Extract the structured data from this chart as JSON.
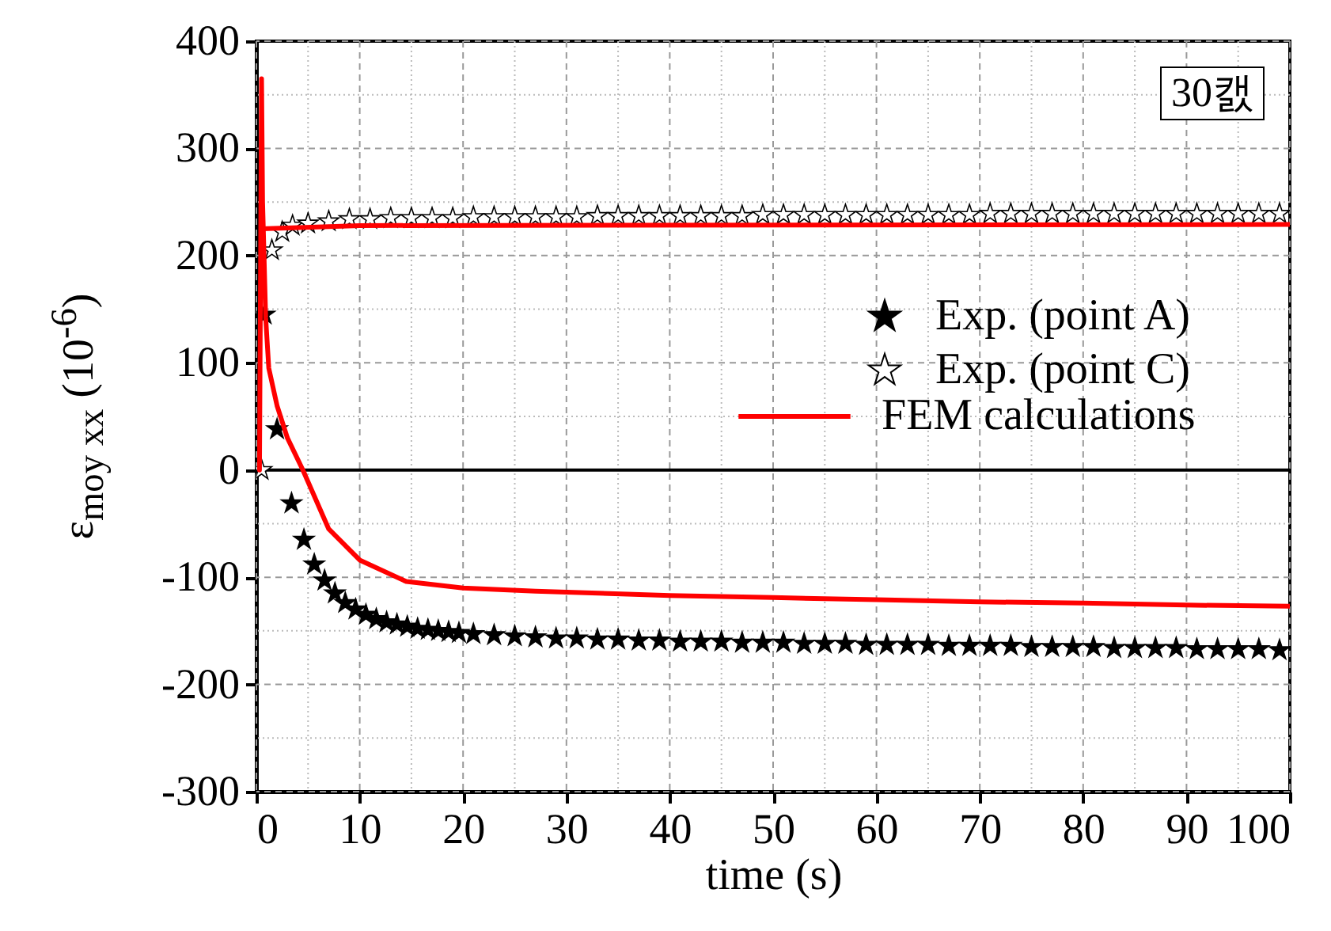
{
  "chart_data": {
    "type": "scatter",
    "xlabel": "time (s)",
    "ylabel": "ε$_{moy xx}$ (10$^{-6}$)",
    "annotations": [
      "30캜"
    ],
    "xlim": [
      0,
      100
    ],
    "ylim": [
      -300,
      400
    ],
    "xticks": [
      0,
      {
        "value": 5,
        "label": null
      },
      10,
      {
        "value": 15,
        "label": null
      },
      20,
      {
        "value": 25,
        "label": null
      },
      30,
      {
        "value": 35,
        "label": null
      },
      40,
      {
        "value": 45,
        "label": null
      },
      50,
      {
        "value": 55,
        "label": null
      },
      60,
      {
        "value": 65,
        "label": null
      },
      70,
      {
        "value": 75,
        "label": null
      },
      80,
      {
        "value": 85,
        "label": null
      },
      90,
      {
        "value": 95,
        "label": null
      },
      100
    ],
    "yticks": [
      -300,
      {
        "value": -250,
        "label": null
      },
      -200,
      {
        "value": -150,
        "label": null
      },
      -100,
      {
        "value": -50,
        "label": null
      },
      0,
      {
        "value": 50,
        "label": null
      },
      100,
      {
        "value": 150,
        "label": null
      },
      200,
      {
        "value": 250,
        "label": null
      },
      300,
      {
        "value": 350,
        "label": null
      },
      400
    ],
    "grid": true,
    "legend": "right",
    "ref_lines": [
      {
        "axis": "y",
        "value": 0,
        "color": "#000000"
      }
    ],
    "series": [
      {
        "name": "Exp. (point A)",
        "marker": "star",
        "color": "#000000",
        "x": [
          0.8,
          2,
          3.4,
          4.6,
          5.6,
          6.6,
          7.6,
          8.6,
          9.6,
          10.6,
          11.6,
          12.6,
          13.6,
          14.6,
          15.6,
          16.6,
          17.6,
          18.6,
          19.6,
          21,
          23,
          25,
          27,
          29,
          31,
          33,
          35,
          37,
          39,
          41,
          43,
          45,
          47,
          49,
          51,
          53,
          55,
          57,
          59,
          61,
          63,
          65,
          67,
          69,
          71,
          73,
          75,
          77,
          79,
          81,
          83,
          85,
          87,
          89,
          91,
          93,
          95,
          97,
          99
        ],
        "values": [
          145,
          38,
          -31,
          -65,
          -88,
          -103,
          -115,
          -124,
          -130,
          -135,
          -139,
          -142,
          -144,
          -146,
          -148,
          -149,
          -150,
          -151,
          -152,
          -153,
          -154,
          -155,
          -156,
          -157,
          -157,
          -158,
          -158,
          -159,
          -159,
          -160,
          -160,
          -160,
          -161,
          -161,
          -161,
          -162,
          -162,
          -162,
          -163,
          -163,
          -163,
          -163,
          -164,
          -164,
          -164,
          -164,
          -165,
          -165,
          -165,
          -165,
          -166,
          -166,
          -166,
          -166,
          -167,
          -167,
          -167,
          -167,
          -168
        ]
      },
      {
        "name": "Exp. (point C)",
        "marker": "star",
        "color": "#ffffff",
        "x": [
          0.5,
          1.5,
          2.5,
          3.5,
          5,
          7,
          9,
          11,
          13,
          15,
          17,
          19,
          21,
          23,
          25,
          27,
          29,
          31,
          33,
          35,
          37,
          39,
          41,
          43,
          45,
          47,
          49,
          51,
          53,
          55,
          57,
          59,
          61,
          63,
          65,
          67,
          69,
          71,
          73,
          75,
          77,
          79,
          81,
          83,
          85,
          87,
          89,
          91,
          93,
          95,
          97,
          99
        ],
        "values": [
          0,
          205,
          222,
          228,
          230,
          232,
          234,
          234,
          235,
          235,
          235,
          235,
          236,
          236,
          236,
          236,
          236,
          236,
          237,
          237,
          237,
          237,
          237,
          237,
          237,
          237,
          238,
          238,
          238,
          238,
          238,
          238,
          238,
          238,
          238,
          238,
          238,
          239,
          239,
          239,
          239,
          239,
          239,
          239,
          239,
          239,
          239,
          239,
          239,
          239,
          239,
          239
        ]
      },
      {
        "name": "FEM calculations",
        "type": "line",
        "color": "#ff0000",
        "x": [
          0.3,
          0.5,
          0.6,
          0.9,
          1.2,
          2,
          3,
          4.5,
          7,
          10,
          14.5,
          20,
          27,
          40,
          50,
          60,
          70,
          80,
          90,
          100
        ],
        "values": [
          0,
          365,
          250,
          142,
          95,
          60,
          30,
          0,
          -55,
          -84,
          -104,
          -110,
          -113,
          -117,
          -119,
          -121,
          -123,
          -124,
          -126,
          -127
        ]
      },
      {
        "type": "line",
        "color": "#ff0000",
        "x": [
          0.5,
          10,
          100
        ],
        "values": [
          225,
          228,
          229
        ]
      }
    ]
  }
}
